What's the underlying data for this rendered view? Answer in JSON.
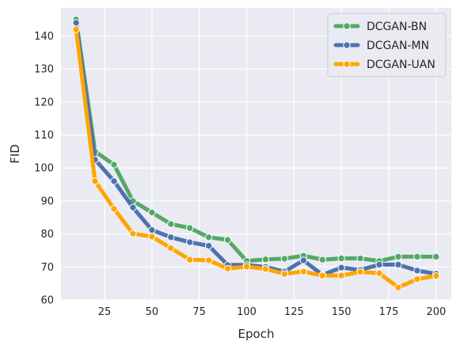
{
  "chart_data": {
    "type": "line",
    "title": "",
    "xlabel": "Epoch",
    "ylabel": "FID",
    "x": [
      10,
      20,
      30,
      40,
      50,
      60,
      70,
      80,
      90,
      100,
      110,
      120,
      130,
      140,
      150,
      160,
      170,
      180,
      190,
      200
    ],
    "xlim": [
      2,
      208
    ],
    "ylim": [
      60,
      148.5
    ],
    "xticks": [
      25,
      50,
      75,
      100,
      125,
      150,
      175,
      200
    ],
    "yticks": [
      60,
      70,
      80,
      90,
      100,
      110,
      120,
      130,
      140
    ],
    "grid": true,
    "legend_position": "top-right",
    "series": [
      {
        "name": "DCGAN-BN",
        "color": "#55a868",
        "values": [
          145,
          105,
          101,
          90,
          86.5,
          83,
          81.8,
          79,
          78.2,
          71.8,
          72.3,
          72.5,
          73.4,
          72.2,
          72.6,
          72.6,
          71.8,
          73.1,
          73.1,
          73.1
        ]
      },
      {
        "name": "DCGAN-MN",
        "color": "#4c72b0",
        "values": [
          144,
          102.5,
          96,
          88,
          81.2,
          79,
          77.5,
          76.4,
          70.6,
          70.6,
          70,
          68.6,
          72,
          67.6,
          69.8,
          69.1,
          70.7,
          70.7,
          68.9,
          67.9
        ]
      },
      {
        "name": "DCGAN-UAN",
        "color": "#ffa500",
        "values": [
          142,
          96,
          87.6,
          80.1,
          79.2,
          75.7,
          72.2,
          72,
          69.5,
          70.1,
          69.4,
          67.9,
          68.6,
          67.4,
          67.4,
          68.5,
          68.1,
          63.8,
          66.3,
          67.3
        ]
      }
    ]
  }
}
